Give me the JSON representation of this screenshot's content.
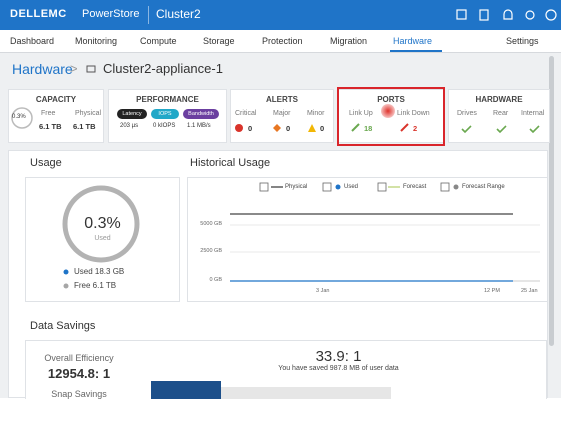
{
  "header": {
    "brand": "DELLEMC",
    "product": "PowerStore",
    "cluster": "Cluster2"
  },
  "nav": [
    "Dashboard",
    "Monitoring",
    "Compute",
    "Storage",
    "Protection",
    "Migration",
    "Hardware",
    "Settings"
  ],
  "breadcrumb": {
    "parent": "Hardware",
    "current": "Cluster2-appliance-1"
  },
  "summary": {
    "capacity": {
      "title": "CAPACITY",
      "percent": "0.3%",
      "free_label": "Free",
      "free_value": "6.1 TB",
      "physical_label": "Physical",
      "physical_value": "6.1 TB"
    },
    "performance": {
      "title": "PERFORMANCE",
      "pills": [
        "Latency",
        "IOPS",
        "Bandwidth"
      ],
      "values": [
        "203 µs",
        "0 kIOPS",
        "1.1 MB/s"
      ]
    },
    "alerts": {
      "title": "ALERTS",
      "items": [
        {
          "label": "Critical",
          "value": 0
        },
        {
          "label": "Major",
          "value": 0
        },
        {
          "label": "Minor",
          "value": 0
        }
      ]
    },
    "ports": {
      "title": "PORTS",
      "items": [
        {
          "label": "Link Up",
          "value": 18
        },
        {
          "label": "Link Down",
          "value": 2
        }
      ]
    },
    "hardware": {
      "title": "HARDWARE",
      "items": [
        "Drives",
        "Rear",
        "Internal"
      ]
    }
  },
  "usage": {
    "title": "Usage",
    "percent": "0.3%",
    "sublabel": "Used",
    "legend": [
      "Used 18.3 GB",
      "Free 6.1 TB"
    ]
  },
  "historical": {
    "title": "Historical Usage",
    "legend": [
      "Physical",
      "Used",
      "Forecast",
      "Forecast Range"
    ],
    "yticks": [
      "5000 GB",
      "2500 GB",
      "0 GB"
    ],
    "xticks": [
      "3 Jan",
      "12 PM",
      "25 Jan"
    ]
  },
  "data_savings": {
    "title": "Data Savings",
    "efficiency_label": "Overall Efficiency",
    "efficiency_value": "12954.8: 1",
    "snap_label": "Snap Savings",
    "ratio": "33.9: 1",
    "saved_text": "You have saved 987.8 MB of user data"
  }
}
